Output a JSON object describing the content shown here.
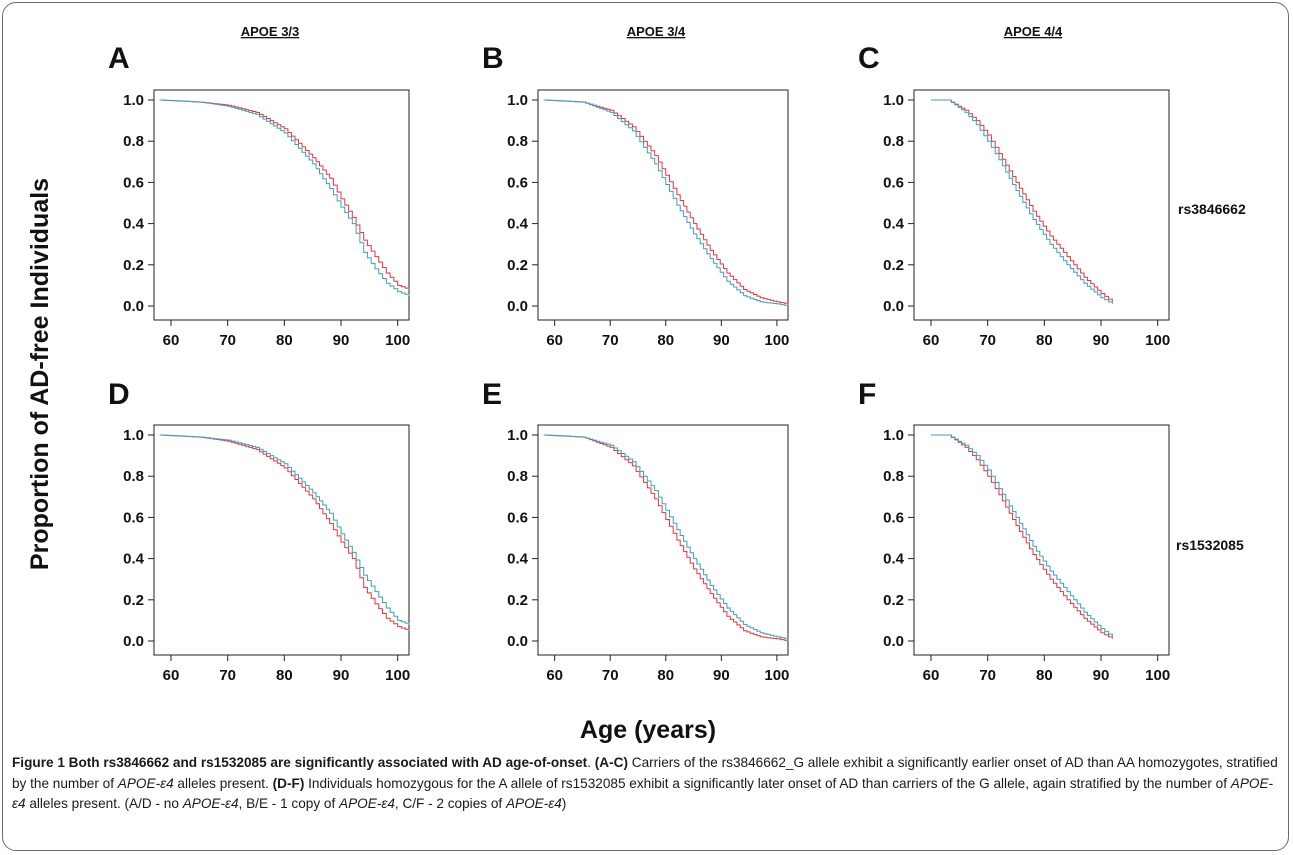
{
  "figure": {
    "y_axis_label": "Proportion of AD-free Individuals",
    "x_axis_label": "Age (years)",
    "column_headers": [
      "APOE 3/3",
      "APOE 3/4",
      "APOE 4/4"
    ],
    "row_labels": [
      "rs3846662",
      "rs1532085"
    ],
    "colors": {
      "red": "#e8353b",
      "blue": "#3c9dc6",
      "axis": "#222222"
    }
  },
  "caption": {
    "label": "Figure 1",
    "title": "Both rs3846662 and rs1532085 are significantly associated with AD age-of-onset",
    "tag_ac": "(A-C)",
    "text_ac_1": " Carriers of the rs3846662_G allele exhibit a significantly earlier onset of AD than AA homozygotes, stratified by the number of ",
    "apoe_e4": "APOE-ε4",
    "text_ac_2": " alleles present. ",
    "tag_df": "(D-F)",
    "text_df_1": " Individuals homozygous for the A allele of rs1532085 exhibit a significantly later onset of AD than carriers of the G allele, again stratified by the number of ",
    "text_df_2": " alleles present. (A/D - no ",
    "text_3": ", B/E - 1 copy of ",
    "text_4": ", C/F - 2 copies of ",
    "text_5": ")"
  },
  "chart_data": [
    {
      "panel": "A",
      "type": "line",
      "xlim": [
        57,
        102
      ],
      "ylim": [
        0,
        1
      ],
      "xticks": [
        60,
        70,
        80,
        90,
        100
      ],
      "yticks": [
        0.0,
        0.2,
        0.4,
        0.6,
        0.8,
        1.0
      ],
      "series": [
        {
          "color": "#e8353b",
          "x": [
            58,
            65,
            70,
            75,
            80,
            85,
            88,
            90,
            92,
            94,
            96,
            98,
            100,
            102
          ],
          "y": [
            1.0,
            0.99,
            0.975,
            0.94,
            0.86,
            0.72,
            0.62,
            0.52,
            0.43,
            0.32,
            0.24,
            0.16,
            0.1,
            0.08
          ]
        },
        {
          "color": "#3c9dc6",
          "x": [
            58,
            65,
            70,
            75,
            80,
            85,
            88,
            90,
            92,
            94,
            96,
            98,
            100,
            102
          ],
          "y": [
            1.0,
            0.99,
            0.97,
            0.93,
            0.84,
            0.69,
            0.57,
            0.48,
            0.4,
            0.26,
            0.18,
            0.11,
            0.07,
            0.05
          ]
        }
      ]
    },
    {
      "panel": "B",
      "type": "line",
      "xlim": [
        57,
        102
      ],
      "ylim": [
        0,
        1
      ],
      "xticks": [
        60,
        70,
        80,
        90,
        100
      ],
      "yticks": [
        0.0,
        0.2,
        0.4,
        0.6,
        0.8,
        1.0
      ],
      "series": [
        {
          "color": "#e8353b",
          "x": [
            58,
            65,
            70,
            74,
            78,
            82,
            85,
            88,
            91,
            94,
            97,
            100,
            102
          ],
          "y": [
            1.0,
            0.99,
            0.95,
            0.87,
            0.73,
            0.54,
            0.4,
            0.27,
            0.16,
            0.08,
            0.04,
            0.02,
            0.01
          ]
        },
        {
          "color": "#3c9dc6",
          "x": [
            58,
            65,
            70,
            74,
            78,
            82,
            85,
            88,
            91,
            94,
            97,
            100,
            102
          ],
          "y": [
            1.0,
            0.99,
            0.94,
            0.85,
            0.69,
            0.49,
            0.35,
            0.23,
            0.12,
            0.05,
            0.02,
            0.01,
            0.0
          ]
        }
      ]
    },
    {
      "panel": "C",
      "type": "line",
      "xlim": [
        57,
        102
      ],
      "ylim": [
        0,
        1
      ],
      "xticks": [
        60,
        70,
        80,
        90,
        100
      ],
      "yticks": [
        0.0,
        0.2,
        0.4,
        0.6,
        0.8,
        1.0
      ],
      "series": [
        {
          "color": "#e8353b",
          "x": [
            60,
            63,
            66,
            68,
            70,
            72,
            75,
            78,
            81,
            84,
            87,
            90,
            92
          ],
          "y": [
            1.0,
            1.0,
            0.95,
            0.9,
            0.83,
            0.74,
            0.6,
            0.46,
            0.34,
            0.24,
            0.14,
            0.06,
            0.02
          ]
        },
        {
          "color": "#3c9dc6",
          "x": [
            60,
            63,
            66,
            68,
            70,
            72,
            75,
            78,
            81,
            84,
            87,
            90,
            92
          ],
          "y": [
            1.0,
            1.0,
            0.94,
            0.88,
            0.8,
            0.71,
            0.56,
            0.42,
            0.3,
            0.2,
            0.11,
            0.04,
            0.01
          ]
        }
      ]
    },
    {
      "panel": "D",
      "type": "line",
      "xlim": [
        57,
        102
      ],
      "ylim": [
        0,
        1
      ],
      "xticks": [
        60,
        70,
        80,
        90,
        100
      ],
      "yticks": [
        0.0,
        0.2,
        0.4,
        0.6,
        0.8,
        1.0
      ],
      "series": [
        {
          "color": "#e8353b",
          "x": [
            58,
            65,
            70,
            75,
            80,
            85,
            88,
            90,
            92,
            94,
            96,
            98,
            100,
            102
          ],
          "y": [
            1.0,
            0.99,
            0.97,
            0.93,
            0.84,
            0.69,
            0.57,
            0.48,
            0.4,
            0.26,
            0.18,
            0.11,
            0.07,
            0.05
          ]
        },
        {
          "color": "#3c9dc6",
          "x": [
            58,
            65,
            70,
            75,
            80,
            85,
            88,
            90,
            92,
            94,
            96,
            98,
            100,
            102
          ],
          "y": [
            1.0,
            0.99,
            0.975,
            0.94,
            0.86,
            0.72,
            0.62,
            0.52,
            0.43,
            0.32,
            0.24,
            0.16,
            0.1,
            0.08
          ]
        }
      ]
    },
    {
      "panel": "E",
      "type": "line",
      "xlim": [
        57,
        102
      ],
      "ylim": [
        0,
        1
      ],
      "xticks": [
        60,
        70,
        80,
        90,
        100
      ],
      "yticks": [
        0.0,
        0.2,
        0.4,
        0.6,
        0.8,
        1.0
      ],
      "series": [
        {
          "color": "#e8353b",
          "x": [
            58,
            65,
            70,
            74,
            78,
            82,
            85,
            88,
            91,
            94,
            97,
            100,
            102
          ],
          "y": [
            1.0,
            0.99,
            0.94,
            0.85,
            0.69,
            0.49,
            0.35,
            0.23,
            0.12,
            0.05,
            0.02,
            0.01,
            0.0
          ]
        },
        {
          "color": "#3c9dc6",
          "x": [
            58,
            65,
            70,
            74,
            78,
            82,
            85,
            88,
            91,
            94,
            97,
            100,
            102
          ],
          "y": [
            1.0,
            0.99,
            0.95,
            0.87,
            0.73,
            0.54,
            0.4,
            0.27,
            0.16,
            0.08,
            0.04,
            0.02,
            0.01
          ]
        }
      ]
    },
    {
      "panel": "F",
      "type": "line",
      "xlim": [
        57,
        102
      ],
      "ylim": [
        0,
        1
      ],
      "xticks": [
        60,
        70,
        80,
        90,
        100
      ],
      "yticks": [
        0.0,
        0.2,
        0.4,
        0.6,
        0.8,
        1.0
      ],
      "series": [
        {
          "color": "#e8353b",
          "x": [
            60,
            63,
            66,
            68,
            70,
            72,
            75,
            78,
            81,
            84,
            87,
            90,
            92
          ],
          "y": [
            1.0,
            1.0,
            0.94,
            0.88,
            0.8,
            0.71,
            0.56,
            0.42,
            0.3,
            0.2,
            0.11,
            0.04,
            0.01
          ]
        },
        {
          "color": "#3c9dc6",
          "x": [
            60,
            63,
            66,
            68,
            70,
            72,
            75,
            78,
            81,
            84,
            87,
            90,
            92
          ],
          "y": [
            1.0,
            1.0,
            0.95,
            0.9,
            0.83,
            0.74,
            0.6,
            0.46,
            0.34,
            0.24,
            0.14,
            0.06,
            0.02
          ]
        }
      ]
    }
  ]
}
